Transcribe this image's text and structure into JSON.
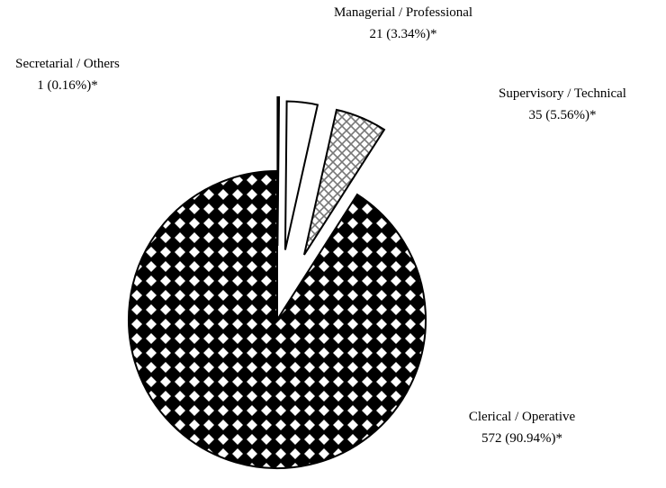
{
  "chart_data": {
    "type": "pie",
    "categories": [
      "Secretarial / Others",
      "Managerial / Professional",
      "Supervisory / Technical",
      "Clerical / Operative"
    ],
    "values": [
      1,
      21,
      35,
      572
    ],
    "value_labels": [
      "1 (0.16%)*",
      "21 (3.34%)*",
      "35 (5.56%)*",
      "572 (90.94%)*"
    ]
  }
}
